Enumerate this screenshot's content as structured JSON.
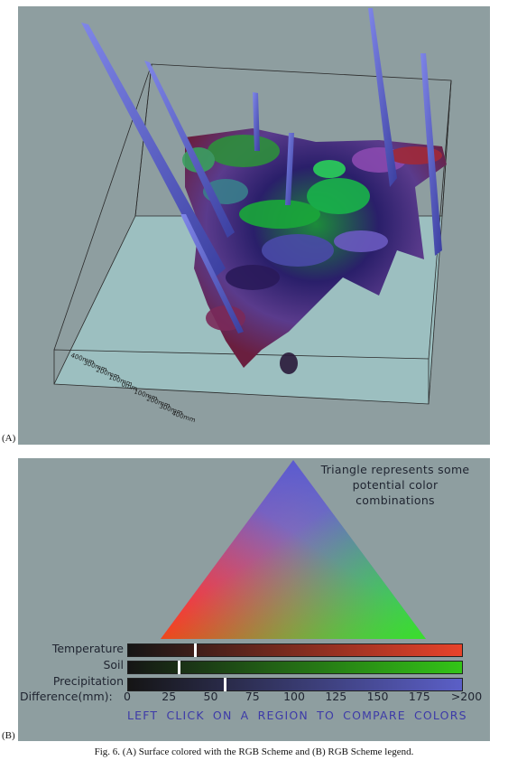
{
  "panel_a": {
    "label": "(A)",
    "axis_ticks": [
      "400mm",
      "300mm",
      "200mm",
      "100mm",
      "0mm",
      "100mm",
      "200mm",
      "300mm",
      "400mm"
    ]
  },
  "panel_b": {
    "label": "(B)",
    "triangle_text": [
      "Triangle represents some",
      "potential color",
      "combinations"
    ],
    "bars": [
      {
        "label": "Temperature",
        "start_color": "#151515",
        "end_color": "#e8432a",
        "marker_value": 40
      },
      {
        "label": "Soil",
        "start_color": "#151515",
        "end_color": "#33c417",
        "marker_value": 30
      },
      {
        "label": "Precipitation",
        "start_color": "#151515",
        "end_color": "#5b5fc7",
        "marker_value": 58
      }
    ],
    "difference_label": "Difference(mm):",
    "ticks": [
      "0",
      "25",
      "50",
      "75",
      "100",
      "125",
      "150",
      "175",
      ">200"
    ],
    "tick_values": [
      0,
      25,
      50,
      75,
      100,
      125,
      150,
      175,
      200
    ],
    "instruction": "LEFT CLICK ON A REGION TO COMPARE COLORS"
  },
  "caption": "Fig. 6.  (A) Surface colored with the RGB Scheme and (B) RGB Scheme legend."
}
